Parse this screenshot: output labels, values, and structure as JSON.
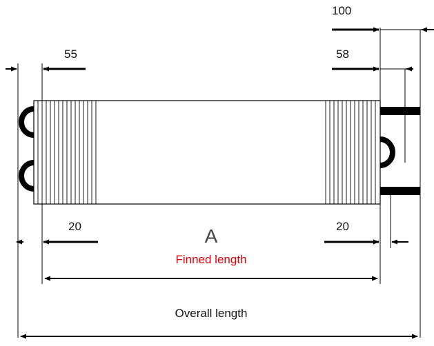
{
  "dimensions": {
    "top_right_100": "100",
    "top_left_55": "55",
    "top_right_58": "58",
    "bottom_left_20": "20",
    "bottom_right_20": "20"
  },
  "labels": {
    "center_letter": "A",
    "finned_length": "Finned length",
    "overall_length": "Overall length"
  },
  "colors": {
    "finned_length_text": "#e8000b",
    "lines": "#000000"
  }
}
